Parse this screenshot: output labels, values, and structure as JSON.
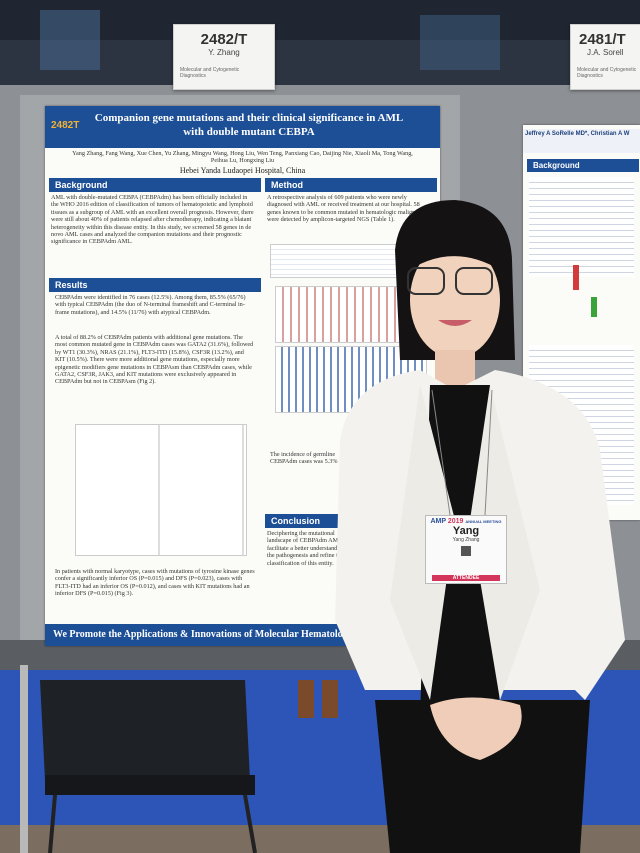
{
  "signs": [
    {
      "number": "2482/T",
      "name": "Y. Zhang",
      "topic": "Molecular and Cytogenetic Diagnostics"
    },
    {
      "number": "2481/T",
      "name": "J.A. Sorell",
      "topic": "Molecular and Cytogenetic Diagnostics"
    }
  ],
  "poster": {
    "tag": "2482T",
    "title": "Companion gene mutations and their clinical significance in AML with double mutant CEBPA",
    "authors": "Yang Zhang, Fang Wang, Xue Chen, Yu Zhang, Mingyu Wang, Hong Liu, Wen Teng, Panxiang Cao, Daijing Nie, Xiaoli Ma, Tong Wang, Peihua Lu, Hongxing Liu",
    "affiliation": "Hebei Yanda Ludaopei Hospital, China",
    "background_heading": "Background",
    "background_text": "AML with double-mutated CEBPA (CEBPAdm) has been officially included in the WHO 2016 edition of classification of tumors of hematopoietic and lymphoid tissues as a subgroup of AML with an excellent overall prognosis. However, there were still about 40% of patients relapsed after chemotherapy, indicating a blatant heterogeneity within this disease entity. In this study, we screened 58 genes in de novo AML cases and analyzed the companion mutations and their prognostic significance in CEBPAdm AML.",
    "method_heading": "Method",
    "method_text": "A retrospective analysis of 609 patients who were newly diagnosed with AML or received treatment at our hospital. 58 genes known to be common mutated in hematologic malignancies were detected by amplicon-targeted NGS (Table 1).",
    "results_heading": "Results",
    "results": [
      "CEBPAdm were identified in 76 cases (12.5%). Among them, 85.5% (65/76) with typical CEBPAdm (the duo of N-terminal frameshift and C-terminal in-frame mutations), and 14.5% (11/76) with atypical CEBPAdm.",
      "A total of 88.2% of CEBPAdm patients with additional gene mutations. The most common mutated gene in CEBPAdm cases was GATA2 (31.6%), followed by WT1 (30.3%), NRAS (21.1%), FLT3-ITD (15.8%), CSF3R (13.2%), and KIT (10.5%). There were more additional gene mutations, especially more epigenetic modifiers gene mutations in CEBPAsm than CEBPAdm cases, while GATA2, CSF3R, JAK3, and KIT mutations were exclusively appeared in CEBPAdm but not in CEBPAsm (Fig 2).",
      "In patients with normal karyotype, cases with mutations of tyrosine kinase genes confer a significantly inferior OS (P=0.015) and DFS (P=0.023), cases with FLT3-ITD had an inferior OS (P=0.012), and cases with KIT mutations had an inferior DFS (P=0.015) (Fig 3)."
    ],
    "incidence_text": "The incidence of germline CEBPAdm cases was 5.3% ...",
    "conclusion_heading": "Conclusion",
    "conclusion_text": "Deciphering the mutational landscape of CEBPAdm AML could facilitate a better understanding of the pathogenesis and refine the classification of this entity.",
    "footer": "We Promote the Applications & Innovations of Molecular Hematology"
  },
  "right_poster": {
    "authors": "Jeffrey A SoRelle MD*, Christian A W",
    "heading": "Background"
  },
  "badge": {
    "event": "AMP",
    "year": "2019",
    "meeting": "ANNUAL MEETING",
    "first_name": "Yang",
    "full_name": "Yang Zhang",
    "role": "ATTENDEE"
  }
}
